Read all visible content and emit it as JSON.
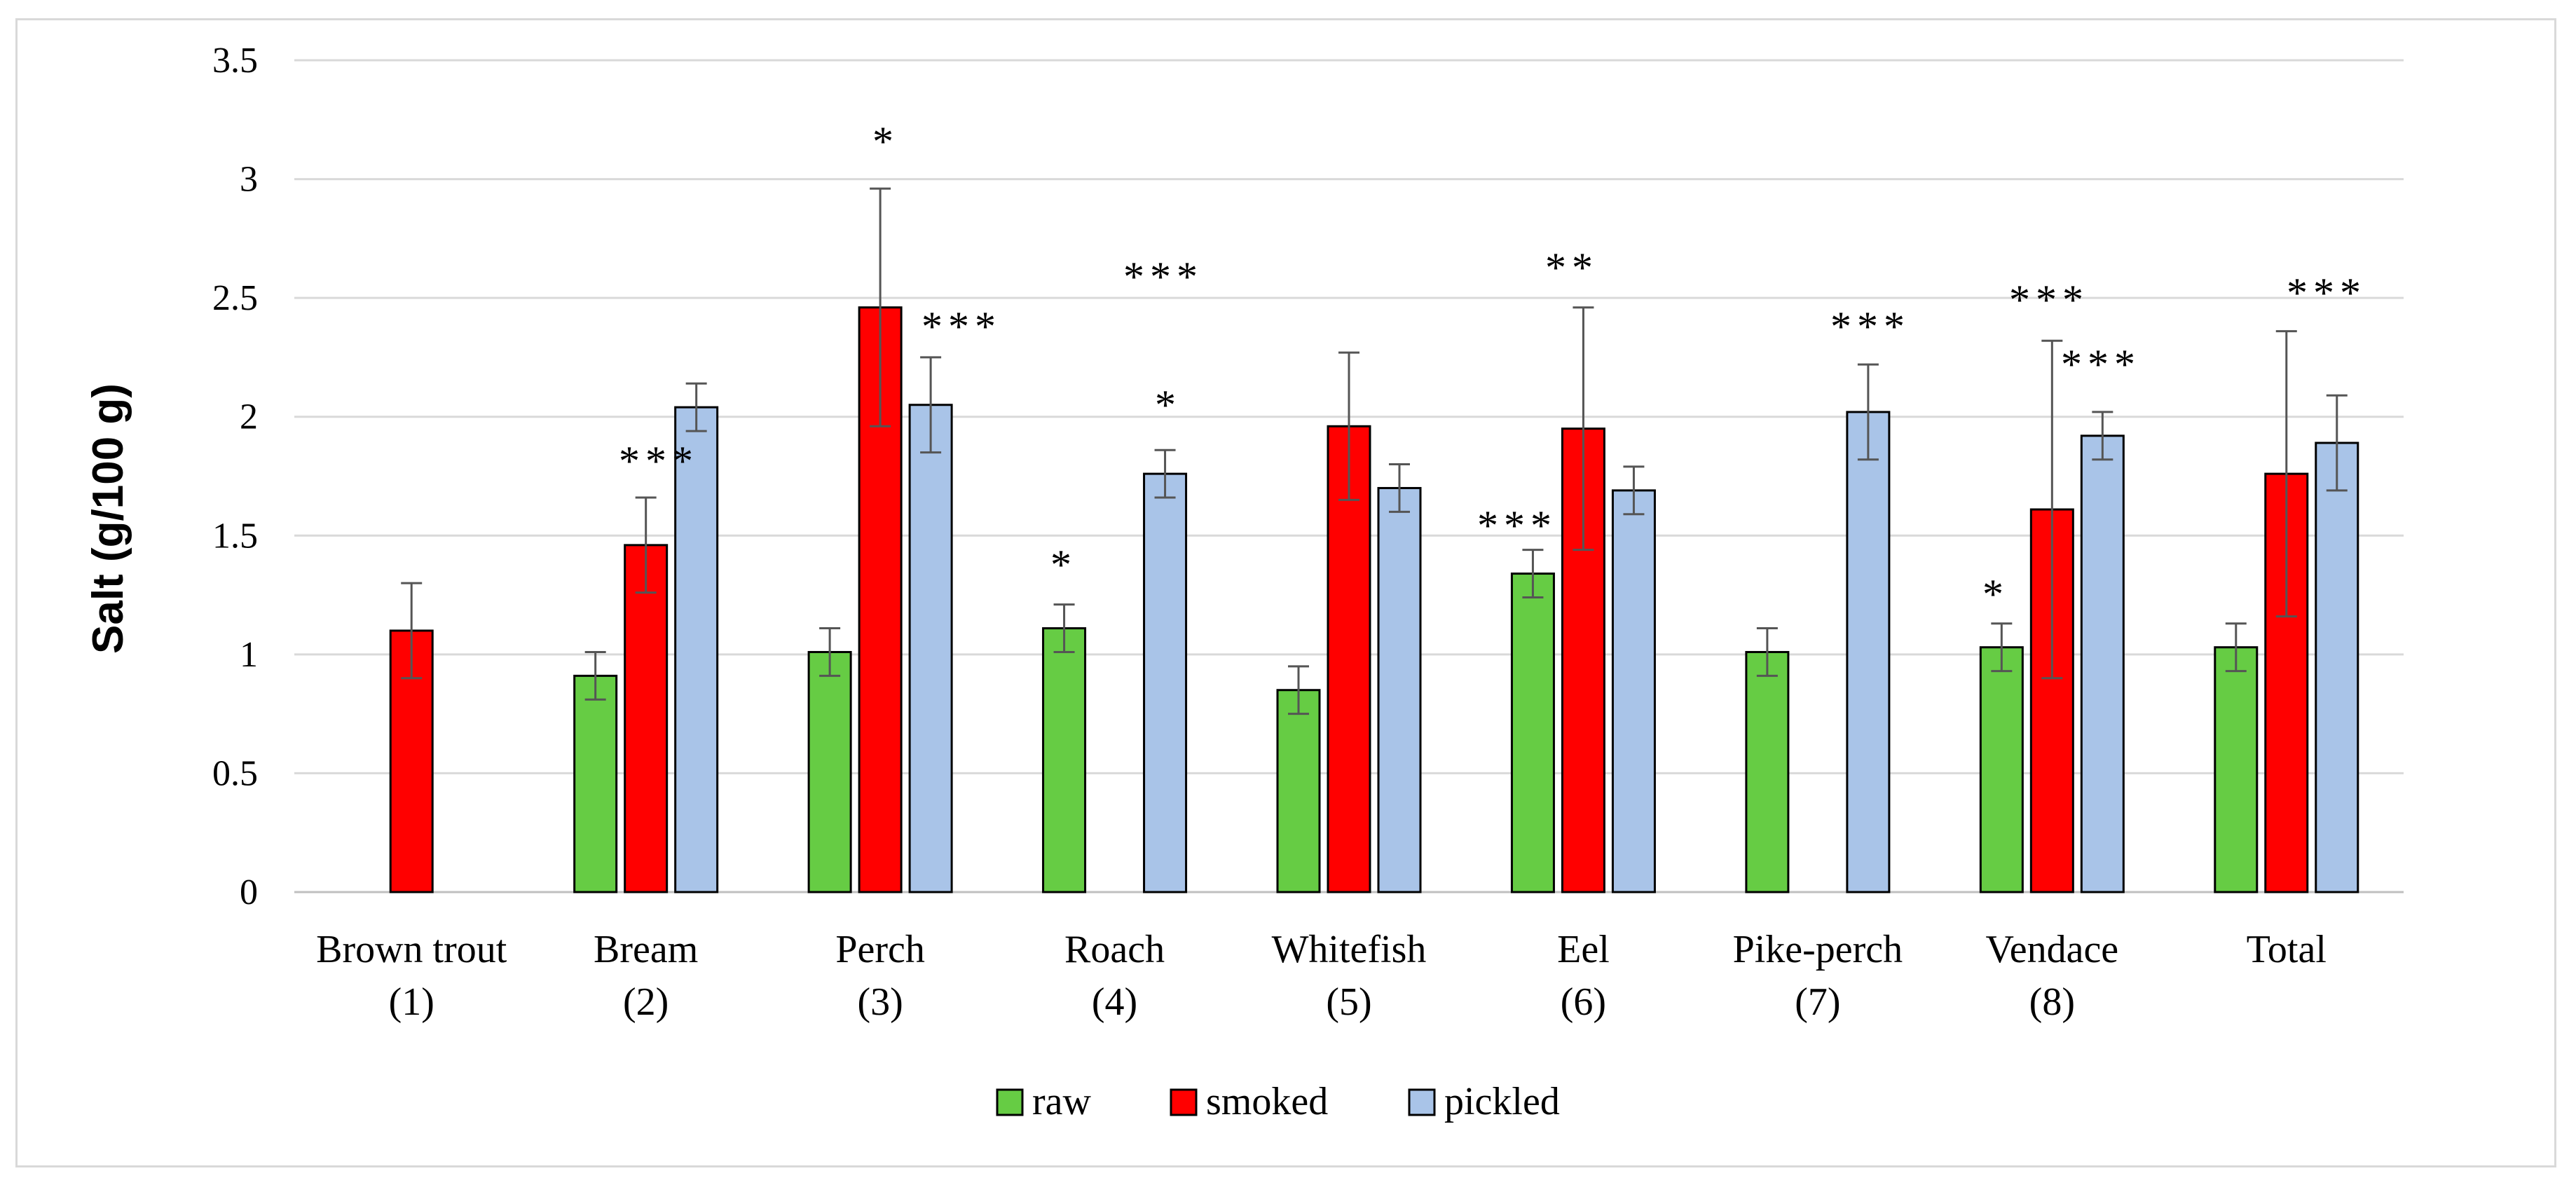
{
  "chart_data": {
    "type": "bar",
    "title": "",
    "xlabel": "",
    "ylabel": "Salt (g/100 g)",
    "ylim": [
      0,
      3.5
    ],
    "yticks": [
      "0",
      "0.5",
      "1",
      "1.5",
      "2",
      "2.5",
      "3",
      "3.5"
    ],
    "grid": true,
    "legend_position": "bottom",
    "categories": [
      {
        "name": "Brown trout",
        "num": "(1)"
      },
      {
        "name": "Bream",
        "num": "(2)"
      },
      {
        "name": "Perch",
        "num": "(3)"
      },
      {
        "name": "Roach",
        "num": "(4)"
      },
      {
        "name": "Whitefish",
        "num": "(5)"
      },
      {
        "name": "Eel",
        "num": "(6)"
      },
      {
        "name": "Pike-perch",
        "num": "(7)"
      },
      {
        "name": "Vendace",
        "num": "(8)"
      },
      {
        "name": "Total",
        "num": ""
      }
    ],
    "series": [
      {
        "name": "raw",
        "color": "#66cc44",
        "values": [
          null,
          0.91,
          1.01,
          1.11,
          0.85,
          1.34,
          1.01,
          1.03,
          1.03
        ],
        "errors": [
          null,
          0.1,
          0.1,
          0.1,
          0.1,
          0.1,
          0.1,
          0.1,
          0.1
        ],
        "sig": [
          null,
          null,
          null,
          "*",
          null,
          "***",
          null,
          "*",
          null
        ]
      },
      {
        "name": "smoked",
        "color": "#ff0000",
        "values": [
          1.1,
          1.46,
          2.46,
          null,
          1.96,
          1.95,
          null,
          1.61,
          1.76
        ],
        "errors": [
          0.2,
          0.2,
          0.5,
          null,
          0.31,
          0.51,
          null,
          0.71,
          0.6
        ],
        "sig": [
          null,
          "***",
          "*",
          "***",
          null,
          "**",
          null,
          "***",
          "***"
        ]
      },
      {
        "name": "pickled",
        "color": "#a9c4e8",
        "values": [
          null,
          2.04,
          2.05,
          1.76,
          1.7,
          1.69,
          2.02,
          1.92,
          1.89
        ],
        "errors": [
          null,
          0.1,
          0.2,
          0.1,
          0.1,
          0.1,
          0.2,
          0.1,
          0.2
        ],
        "sig": [
          null,
          null,
          "***",
          "*",
          null,
          null,
          "***",
          "***",
          null
        ]
      }
    ]
  }
}
